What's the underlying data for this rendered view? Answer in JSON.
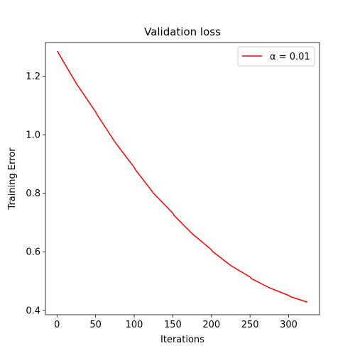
{
  "chart_data": {
    "type": "line",
    "title": "Validation loss",
    "xlabel": "Iterations",
    "ylabel": "Training Error",
    "xlim": [
      -15,
      340
    ],
    "ylim": [
      0.385,
      1.315
    ],
    "xticks": [
      0,
      50,
      100,
      150,
      200,
      250,
      300
    ],
    "yticks": [
      0.4,
      0.6,
      0.8,
      1.0,
      1.2
    ],
    "xtick_labels": [
      "0",
      "50",
      "100",
      "150",
      "200",
      "250",
      "300"
    ],
    "ytick_labels": [
      "0.4",
      "0.6",
      "0.8",
      "1.0",
      "1.2"
    ],
    "grid": false,
    "legend_position": "top-right",
    "series": [
      {
        "name": "α = 0.01",
        "color": "#ff0000",
        "x": [
          0,
          1,
          2,
          25,
          50,
          51,
          52,
          75,
          100,
          101,
          102,
          125,
          150,
          151,
          152,
          175,
          200,
          201,
          202,
          225,
          250,
          251,
          252,
          275,
          300,
          301,
          302,
          324
        ],
        "y": [
          1.285,
          1.284,
          1.278,
          1.175,
          1.078,
          1.073,
          1.068,
          0.975,
          0.888,
          0.883,
          0.879,
          0.8,
          0.732,
          0.727,
          0.723,
          0.662,
          0.607,
          0.603,
          0.6,
          0.553,
          0.514,
          0.511,
          0.508,
          0.477,
          0.451,
          0.449,
          0.447,
          0.428
        ]
      }
    ]
  }
}
